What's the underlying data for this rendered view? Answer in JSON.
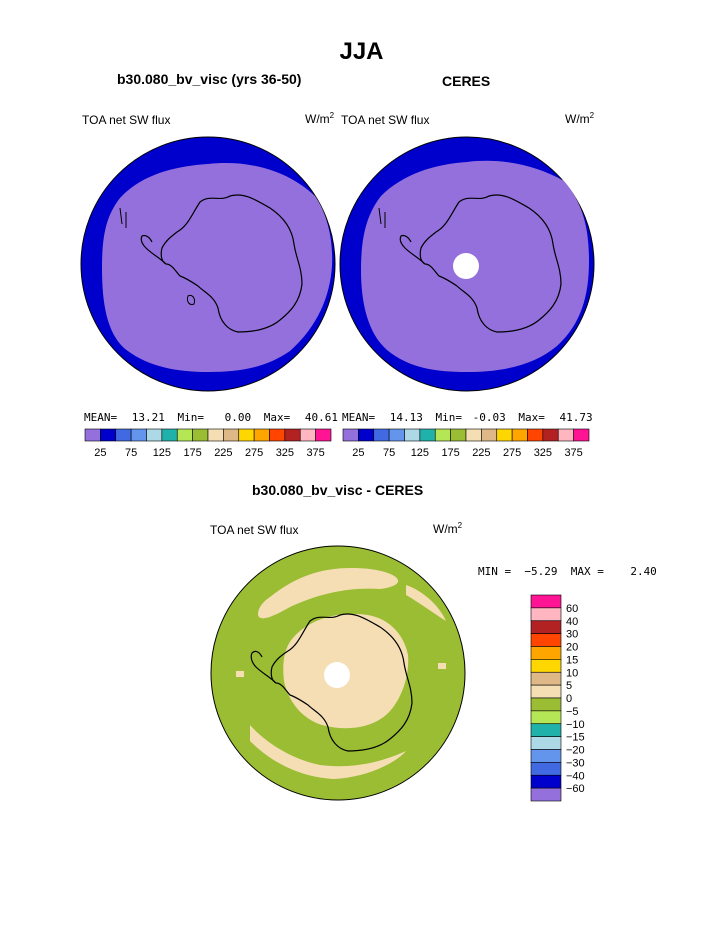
{
  "page": {
    "season_title": "JJA"
  },
  "panel_left": {
    "case_title": "b30.080_bv_visc (yrs 36-50)",
    "variable": "TOA net SW flux",
    "units_base": "W/m",
    "units_exp": "2",
    "mean_label": "MEAN=",
    "mean": "13.21",
    "min_label": "Min=",
    "min": "0.00",
    "max_label": "Max=",
    "max": "40.61"
  },
  "panel_right": {
    "case_title": "CERES",
    "variable": "TOA net SW flux",
    "units_base": "W/m",
    "units_exp": "2",
    "mean_label": "MEAN=",
    "mean": "14.13",
    "min_label": "Min=",
    "min": "-0.03",
    "max_label": "Max=",
    "max": "41.73"
  },
  "panel_diff": {
    "case_title": "b30.080_bv_visc - CERES",
    "variable": "TOA net SW flux",
    "units_base": "W/m",
    "units_exp": "2",
    "minmax": "MIN =  −5.29  MAX =    2.40"
  },
  "colors": {
    "ocean_fill_left": "#0000cd",
    "ocean_fill_right": "#0000cd",
    "interior_fill": "#9370db",
    "diff_main": "#9abd34",
    "diff_light": "#f5deb3",
    "coastline": "#000000"
  },
  "chart_data": [
    {
      "type": "heatmap",
      "title": "b30.080_bv_visc (yrs 36-50)",
      "field": "TOA net SW flux",
      "units": "W/m2",
      "projection": "south polar stereographic",
      "stats": {
        "mean": 13.21,
        "min": 0.0,
        "max": 40.61
      },
      "colorbar_ticks": [
        "25",
        "75",
        "125",
        "175",
        "225",
        "275",
        "325",
        "375"
      ],
      "colorbar_colors": [
        "#9370db",
        "#0000cd",
        "#4169e1",
        "#6495ed",
        "#add8e6",
        "#20b2aa",
        "#b5e655",
        "#9abd34",
        "#f5deb3",
        "#deb887",
        "#ffd700",
        "#ffa500",
        "#ff4500",
        "#b22222",
        "#ffb6c1",
        "#ff1493"
      ]
    },
    {
      "type": "heatmap",
      "title": "CERES",
      "field": "TOA net SW flux",
      "units": "W/m2",
      "projection": "south polar stereographic",
      "stats": {
        "mean": 14.13,
        "min": -0.03,
        "max": 41.73
      },
      "colorbar_ticks": [
        "25",
        "75",
        "125",
        "175",
        "225",
        "275",
        "325",
        "375"
      ],
      "colorbar_colors": [
        "#9370db",
        "#0000cd",
        "#4169e1",
        "#6495ed",
        "#add8e6",
        "#20b2aa",
        "#b5e655",
        "#9abd34",
        "#f5deb3",
        "#deb887",
        "#ffd700",
        "#ffa500",
        "#ff4500",
        "#b22222",
        "#ffb6c1",
        "#ff1493"
      ]
    },
    {
      "type": "heatmap",
      "title": "b30.080_bv_visc - CERES",
      "field": "TOA net SW flux",
      "units": "W/m2",
      "projection": "south polar stereographic",
      "stats": {
        "min": -5.29,
        "max": 2.4
      },
      "colorbar_ticks": [
        "60",
        "40",
        "30",
        "20",
        "15",
        "10",
        "5",
        "0",
        "−5",
        "−10",
        "−15",
        "−20",
        "−30",
        "−40",
        "−60"
      ],
      "colorbar_colors": [
        "#ff1493",
        "#ffb6c1",
        "#b22222",
        "#ff4500",
        "#ffa500",
        "#ffd700",
        "#deb887",
        "#f5deb3",
        "#9abd34",
        "#b5e655",
        "#20b2aa",
        "#add8e6",
        "#6495ed",
        "#4169e1",
        "#0000cd",
        "#9370db"
      ]
    }
  ]
}
